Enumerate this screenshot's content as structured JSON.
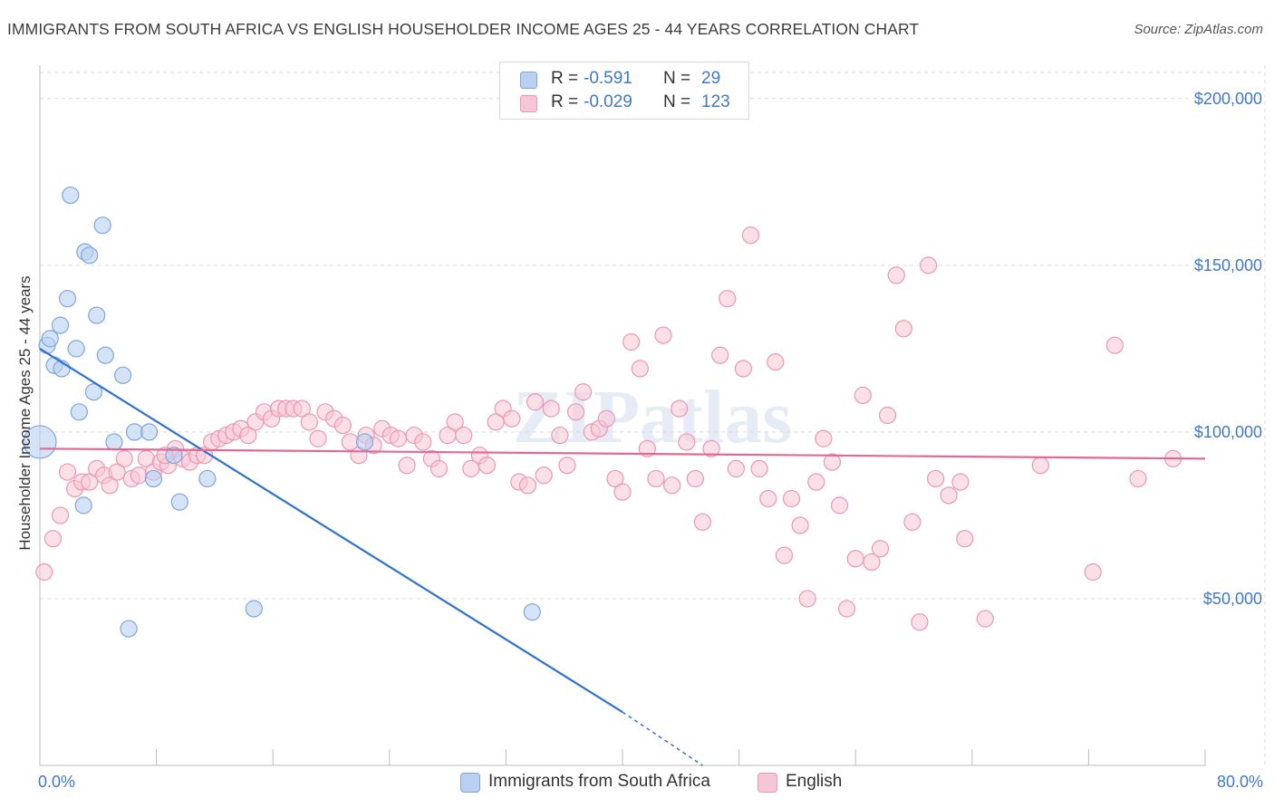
{
  "header": {
    "title": "IMMIGRANTS FROM SOUTH AFRICA VS ENGLISH HOUSEHOLDER INCOME AGES 25 - 44 YEARS CORRELATION CHART",
    "source": "Source: ZipAtlas.com"
  },
  "legend": {
    "rows": [
      {
        "r_label": "R =",
        "r_value": "-0.591",
        "n_label": "N =",
        "n_value": "29"
      },
      {
        "r_label": "R =",
        "r_value": "-0.029",
        "n_label": "N =",
        "n_value": "123"
      }
    ]
  },
  "bottom_legend": [
    "Immigrants from South Africa",
    "English"
  ],
  "colors": {
    "blue_fill": "#b9d0f2",
    "blue_stroke": "#7fa6dc",
    "blue_line": "#2f73d2",
    "pink_fill": "#f7c6d6",
    "pink_stroke": "#eb97b4",
    "pink_line": "#e06a93",
    "tick_label": "#3f78c9",
    "grid": "#dcdcdc"
  },
  "chart_data": {
    "type": "scatter",
    "title": "IMMIGRANTS FROM SOUTH AFRICA VS ENGLISH HOUSEHOLDER INCOME AGES 25 - 44 YEARS CORRELATION CHART",
    "xlabel": "",
    "ylabel": "Householder Income Ages 25 - 44 years",
    "xlim": [
      0,
      80
    ],
    "ylim": [
      0,
      210000
    ],
    "x_tick_labels": [
      {
        "value": 0,
        "label": "0.0%"
      },
      {
        "value": 80,
        "label": "80.0%"
      }
    ],
    "y_ticks": [
      {
        "value": 50000,
        "label": "$50,000"
      },
      {
        "value": 100000,
        "label": "$100,000"
      },
      {
        "value": 150000,
        "label": "$150,000"
      },
      {
        "value": 200000,
        "label": "$200,000"
      }
    ],
    "grid": true,
    "legend_position": "top-center",
    "watermark": "ZIPatlas",
    "series": [
      {
        "name": "Immigrants from South Africa",
        "color": "#b9d0f2",
        "trend": {
          "x": [
            0,
            40
          ],
          "y": [
            125000,
            16000
          ],
          "dashed_to": [
            45.5,
            0
          ]
        },
        "points": [
          [
            0,
            97000
          ],
          [
            0.5,
            126000
          ],
          [
            0.7,
            128000
          ],
          [
            1.0,
            120000
          ],
          [
            1.5,
            119000
          ],
          [
            2.1,
            171000
          ],
          [
            2.5,
            125000
          ],
          [
            3.1,
            154000
          ],
          [
            3.4,
            153000
          ],
          [
            4.3,
            162000
          ],
          [
            1.4,
            132000
          ],
          [
            1.9,
            140000
          ],
          [
            3.9,
            135000
          ],
          [
            4.5,
            123000
          ],
          [
            5.7,
            117000
          ],
          [
            3.7,
            112000
          ],
          [
            2.7,
            106000
          ],
          [
            5.1,
            97000
          ],
          [
            6.5,
            100000
          ],
          [
            7.5,
            100000
          ],
          [
            7.8,
            86000
          ],
          [
            9.2,
            93000
          ],
          [
            11.5,
            86000
          ],
          [
            3.0,
            78000
          ],
          [
            9.6,
            79000
          ],
          [
            6.1,
            41000
          ],
          [
            14.7,
            47000
          ],
          [
            22.3,
            97000
          ],
          [
            33.8,
            46000
          ]
        ]
      },
      {
        "name": "English",
        "color": "#f7c6d6",
        "trend": {
          "x": [
            0,
            80
          ],
          "y": [
            95000,
            92000
          ]
        },
        "points": [
          [
            0.3,
            58000
          ],
          [
            0.9,
            68000
          ],
          [
            1.4,
            75000
          ],
          [
            1.9,
            88000
          ],
          [
            2.4,
            83000
          ],
          [
            2.9,
            85000
          ],
          [
            3.4,
            85000
          ],
          [
            3.9,
            89000
          ],
          [
            4.4,
            87000
          ],
          [
            4.8,
            84000
          ],
          [
            5.3,
            88000
          ],
          [
            5.8,
            92000
          ],
          [
            6.3,
            86000
          ],
          [
            6.8,
            87000
          ],
          [
            7.3,
            92000
          ],
          [
            7.8,
            88000
          ],
          [
            8.3,
            91000
          ],
          [
            8.8,
            90000
          ],
          [
            9.3,
            95000
          ],
          [
            9.8,
            92000
          ],
          [
            10.3,
            91000
          ],
          [
            10.8,
            93000
          ],
          [
            11.3,
            93000
          ],
          [
            11.8,
            97000
          ],
          [
            12.3,
            98000
          ],
          [
            12.8,
            99000
          ],
          [
            13.3,
            100000
          ],
          [
            13.8,
            101000
          ],
          [
            14.3,
            99000
          ],
          [
            14.8,
            103000
          ],
          [
            15.4,
            106000
          ],
          [
            15.9,
            104000
          ],
          [
            16.4,
            107000
          ],
          [
            16.9,
            107000
          ],
          [
            17.4,
            107000
          ],
          [
            18.0,
            107000
          ],
          [
            18.5,
            103000
          ],
          [
            19.1,
            98000
          ],
          [
            19.6,
            106000
          ],
          [
            20.2,
            104000
          ],
          [
            20.8,
            102000
          ],
          [
            21.3,
            97000
          ],
          [
            21.9,
            93000
          ],
          [
            22.4,
            99000
          ],
          [
            22.9,
            96000
          ],
          [
            23.5,
            101000
          ],
          [
            24.1,
            99000
          ],
          [
            24.6,
            98000
          ],
          [
            25.2,
            90000
          ],
          [
            25.7,
            99000
          ],
          [
            26.3,
            97000
          ],
          [
            26.9,
            92000
          ],
          [
            27.4,
            89000
          ],
          [
            28.0,
            99000
          ],
          [
            28.5,
            103000
          ],
          [
            29.1,
            99000
          ],
          [
            29.6,
            89000
          ],
          [
            30.2,
            93000
          ],
          [
            30.7,
            90000
          ],
          [
            31.3,
            103000
          ],
          [
            31.8,
            107000
          ],
          [
            32.4,
            104000
          ],
          [
            32.9,
            85000
          ],
          [
            33.5,
            84000
          ],
          [
            34.0,
            109000
          ],
          [
            34.6,
            87000
          ],
          [
            35.1,
            107000
          ],
          [
            35.7,
            99000
          ],
          [
            36.2,
            90000
          ],
          [
            36.8,
            106000
          ],
          [
            37.3,
            112000
          ],
          [
            37.9,
            100000
          ],
          [
            38.4,
            101000
          ],
          [
            38.9,
            104000
          ],
          [
            39.5,
            86000
          ],
          [
            40.0,
            82000
          ],
          [
            40.6,
            127000
          ],
          [
            41.2,
            119000
          ],
          [
            41.7,
            95000
          ],
          [
            42.3,
            86000
          ],
          [
            42.8,
            129000
          ],
          [
            43.4,
            84000
          ],
          [
            43.9,
            107000
          ],
          [
            44.4,
            97000
          ],
          [
            45.0,
            86000
          ],
          [
            45.5,
            73000
          ],
          [
            46.1,
            95000
          ],
          [
            46.7,
            123000
          ],
          [
            47.2,
            140000
          ],
          [
            47.8,
            89000
          ],
          [
            48.3,
            119000
          ],
          [
            48.8,
            159000
          ],
          [
            49.4,
            89000
          ],
          [
            50.0,
            80000
          ],
          [
            50.5,
            121000
          ],
          [
            51.1,
            63000
          ],
          [
            51.6,
            80000
          ],
          [
            52.2,
            72000
          ],
          [
            52.7,
            50000
          ],
          [
            53.3,
            85000
          ],
          [
            53.8,
            98000
          ],
          [
            54.4,
            91000
          ],
          [
            54.9,
            78000
          ],
          [
            55.4,
            47000
          ],
          [
            56.0,
            62000
          ],
          [
            56.5,
            111000
          ],
          [
            57.1,
            61000
          ],
          [
            57.7,
            65000
          ],
          [
            58.2,
            105000
          ],
          [
            58.8,
            147000
          ],
          [
            59.3,
            131000
          ],
          [
            59.9,
            73000
          ],
          [
            60.4,
            43000
          ],
          [
            61.0,
            150000
          ],
          [
            61.5,
            86000
          ],
          [
            62.4,
            81000
          ],
          [
            63.2,
            85000
          ],
          [
            63.5,
            68000
          ],
          [
            64.9,
            44000
          ],
          [
            68.7,
            90000
          ],
          [
            72.3,
            58000
          ],
          [
            73.8,
            126000
          ],
          [
            75.4,
            86000
          ],
          [
            77.8,
            92000
          ],
          [
            8.6,
            93000
          ]
        ]
      }
    ]
  }
}
